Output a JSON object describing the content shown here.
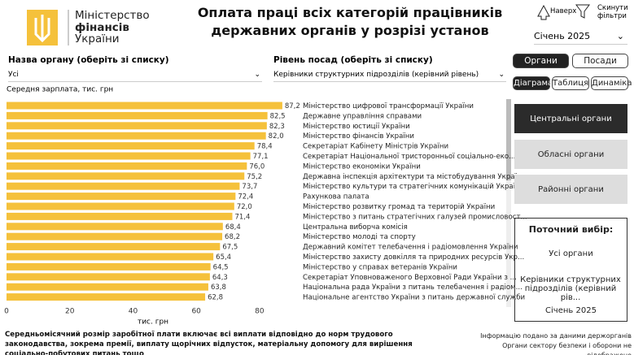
{
  "header": {
    "logo_text": [
      "Міністерство",
      "фінансів",
      "України"
    ],
    "title": "Оплата праці всіх категорій працівників державних органів у розрізі установ",
    "top_buttons": [
      "Наверх",
      "Скинути фільтри"
    ],
    "period": "Січень 2025"
  },
  "filters": [
    {
      "label": "Назва органу (оберіть зі списку)",
      "value": "Усі"
    },
    {
      "label": "Рівень посад (оберіть зі списку)",
      "value": "Керівники структурних підрозділів (керівний рівень)"
    }
  ],
  "tabs": [
    "Органи",
    "Посади"
  ],
  "views": [
    "Діаграма",
    "Таблиця",
    "Динаміка"
  ],
  "levels": [
    "Центральні органи",
    "Обласні органи",
    "Районні органи"
  ],
  "selection": {
    "title": "Поточний вибір:",
    "items": [
      "Усі органи",
      "Керівники структурних підрозділів (керівний рів...",
      "Січень 2025"
    ]
  },
  "footer": {
    "note": "Середньомісячний розмір заробітної плати включає всі виплати відповідно до норм трудового законодавства, зокрема премії, виплату щорічних відпусток, матеріальну допомогу для вирішення соціально-побутових питань тощо",
    "source": [
      "Інформацію подано за даними держорганів",
      "Органи сектору безпеки і оборони не відображено"
    ]
  },
  "chart_data": {
    "type": "hbar",
    "y_label": "Середня зарплата, тис. грн",
    "x_label": "тис. грн",
    "color": "#f5c13b",
    "categories": [
      "Міністерство цифрової трансформації України",
      "Державне управління справами",
      "Міністерство юстиції України",
      "Міністерство фінансів України",
      "Секретаріат Кабінету Міністрів України",
      "Секретаріат Національної тристоронньої соціально-еко...",
      "Міністерство економіки України",
      "Державна інспекція архітектури та містобудування України",
      "Міністерство культури та стратегічних комунікацій України",
      "Рахункова палата",
      "Міністерство розвитку громад та територій України",
      "Міністерство з питань стратегічних галузей промисловост...",
      "Центральна виборча комісія",
      "Міністерство молоді та спорту",
      "Державний комітет телебачення і радіомовлення України",
      "Міністерство захисту довкілля та природних ресурсів Укр...",
      "Міністерство у справах ветеранів України",
      "Секретаріат Уповноваженого Верховної Ради України з ...",
      "Національна рада України з питань телебачення і радіом...",
      "Національне агентство України з питань державної служби"
    ],
    "values": [
      87.2,
      82.5,
      82.3,
      82.0,
      78.4,
      77.1,
      76.0,
      75.2,
      73.7,
      72.4,
      72.0,
      71.4,
      68.4,
      68.2,
      67.5,
      65.4,
      64.5,
      64.3,
      63.8,
      62.8
    ],
    "value_labels": [
      "87,2",
      "82,5",
      "82,3",
      "82,0",
      "78,4",
      "77,1",
      "76,0",
      "75,2",
      "73,7",
      "72,4",
      "72,0",
      "71,4",
      "68,4",
      "68,2",
      "67,5",
      "65,4",
      "64,5",
      "64,3",
      "63,8",
      "62,8"
    ],
    "xlim": [
      0,
      88
    ],
    "xticks": [
      0,
      20,
      40,
      60,
      80
    ],
    "grid": false
  }
}
